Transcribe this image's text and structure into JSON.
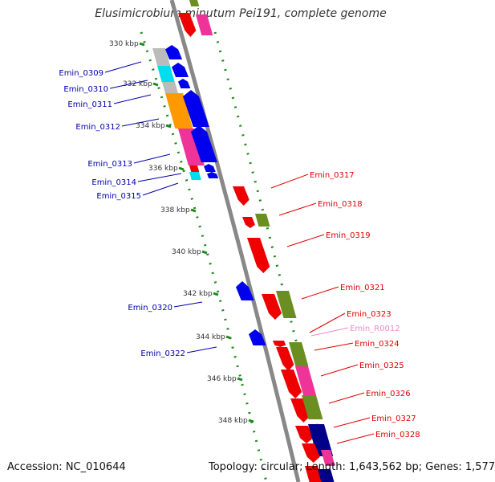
{
  "title": "Elusimicrobium minutum Pei191, complete genome",
  "footer": {
    "accession": "Accession: NC_010644",
    "topology": "Topology: circular; Length: 1,643,562 bp; Genes: 1,577"
  },
  "colors": {
    "axis": "#888888",
    "tick_dots": "#1a8a1a",
    "reverse_label": "#0000aa",
    "forward_label": "#dd0000",
    "rna_label": "#ee88cc",
    "blue": "#0000ee",
    "red": "#ee0000",
    "pink": "#ee3399",
    "orange": "#ff9900",
    "cyan": "#00ddee",
    "grey": "#bbbbbb",
    "olive": "#6b8e23",
    "navy": "#000088"
  },
  "kbp_ticks": [
    "330 kbp",
    "332 kbp",
    "334 kbp",
    "336 kbp",
    "338 kbp",
    "340 kbp",
    "342 kbp",
    "344 kbp",
    "346 kbp",
    "348 kbp"
  ],
  "gene_labels_left": [
    "Emin_0309",
    "Emin_0310",
    "Emin_0311",
    "Emin_0312",
    "Emin_0313",
    "Emin_0314",
    "Emin_0315",
    "Emin_0320",
    "Emin_0322"
  ],
  "gene_labels_right": [
    "Emin_0317",
    "Emin_0318",
    "Emin_0319",
    "Emin_0321",
    "Emin_0323",
    "Emin_R0012",
    "Emin_0324",
    "Emin_0325",
    "Emin_0326",
    "Emin_0327",
    "Emin_0328"
  ]
}
